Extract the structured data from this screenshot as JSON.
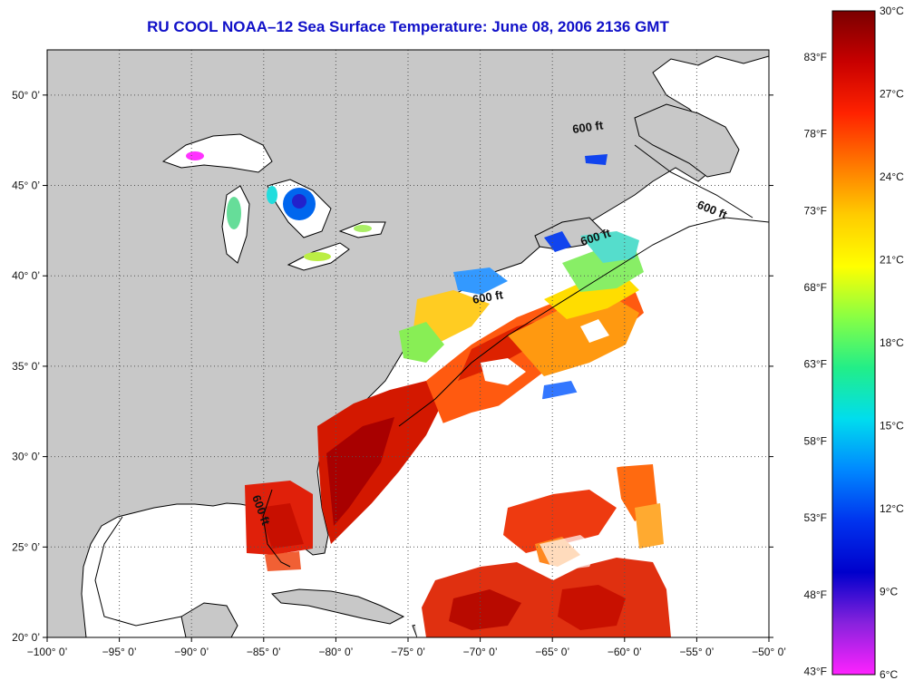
{
  "title": "RU COOL  NOAA–12  Sea Surface Temperature:  June 08, 2006 2136 GMT",
  "map": {
    "lon_range": [
      -100,
      -50
    ],
    "lat_range": [
      20,
      52.5
    ],
    "lon_ticks": [
      {
        "value": -100,
        "label": "−100° 0’"
      },
      {
        "value": -95,
        "label": "−95° 0’"
      },
      {
        "value": -90,
        "label": "−90° 0’"
      },
      {
        "value": -85,
        "label": "−85° 0’"
      },
      {
        "value": -80,
        "label": "−80° 0’"
      },
      {
        "value": -75,
        "label": "−75° 0’"
      },
      {
        "value": -70,
        "label": "−70° 0’"
      },
      {
        "value": -65,
        "label": "−65° 0’"
      },
      {
        "value": -60,
        "label": "−60° 0’"
      },
      {
        "value": -55,
        "label": "−55° 0’"
      },
      {
        "value": -50,
        "label": "−50° 0’"
      }
    ],
    "lat_ticks": [
      {
        "value": 20,
        "label": "20° 0’"
      },
      {
        "value": 25,
        "label": "25° 0’"
      },
      {
        "value": 30,
        "label": "30° 0’"
      },
      {
        "value": 35,
        "label": "35° 0’"
      },
      {
        "value": 40,
        "label": "40° 0’"
      },
      {
        "value": 45,
        "label": "45° 0’"
      },
      {
        "value": 50,
        "label": "50° 0’"
      }
    ],
    "contour_labels": [
      "600 ft",
      "600 ft",
      "600 ft",
      "600 ft",
      "600 ft"
    ],
    "colors": {
      "land": "#c8c8c8",
      "ocean_no_data": "#ffffff",
      "coastline": "#000000",
      "grid": "#555555"
    }
  },
  "colorbar": {
    "celsius_labels": [
      "30°C",
      "27°C",
      "24°C",
      "21°C",
      "18°C",
      "15°C",
      "12°C",
      "9°C",
      "6°C"
    ],
    "fahrenheit_labels": [
      "83°F",
      "78°F",
      "73°F",
      "68°F",
      "63°F",
      "58°F",
      "53°F",
      "48°F",
      "43°F"
    ],
    "gradient_colors": [
      "#7a0000",
      "#c80000",
      "#ff2200",
      "#ff7700",
      "#ffcc00",
      "#ffff00",
      "#88ff44",
      "#22ee88",
      "#00ddee",
      "#0088ff",
      "#0033ee",
      "#0000cc",
      "#8822dd",
      "#ff22ff"
    ]
  }
}
